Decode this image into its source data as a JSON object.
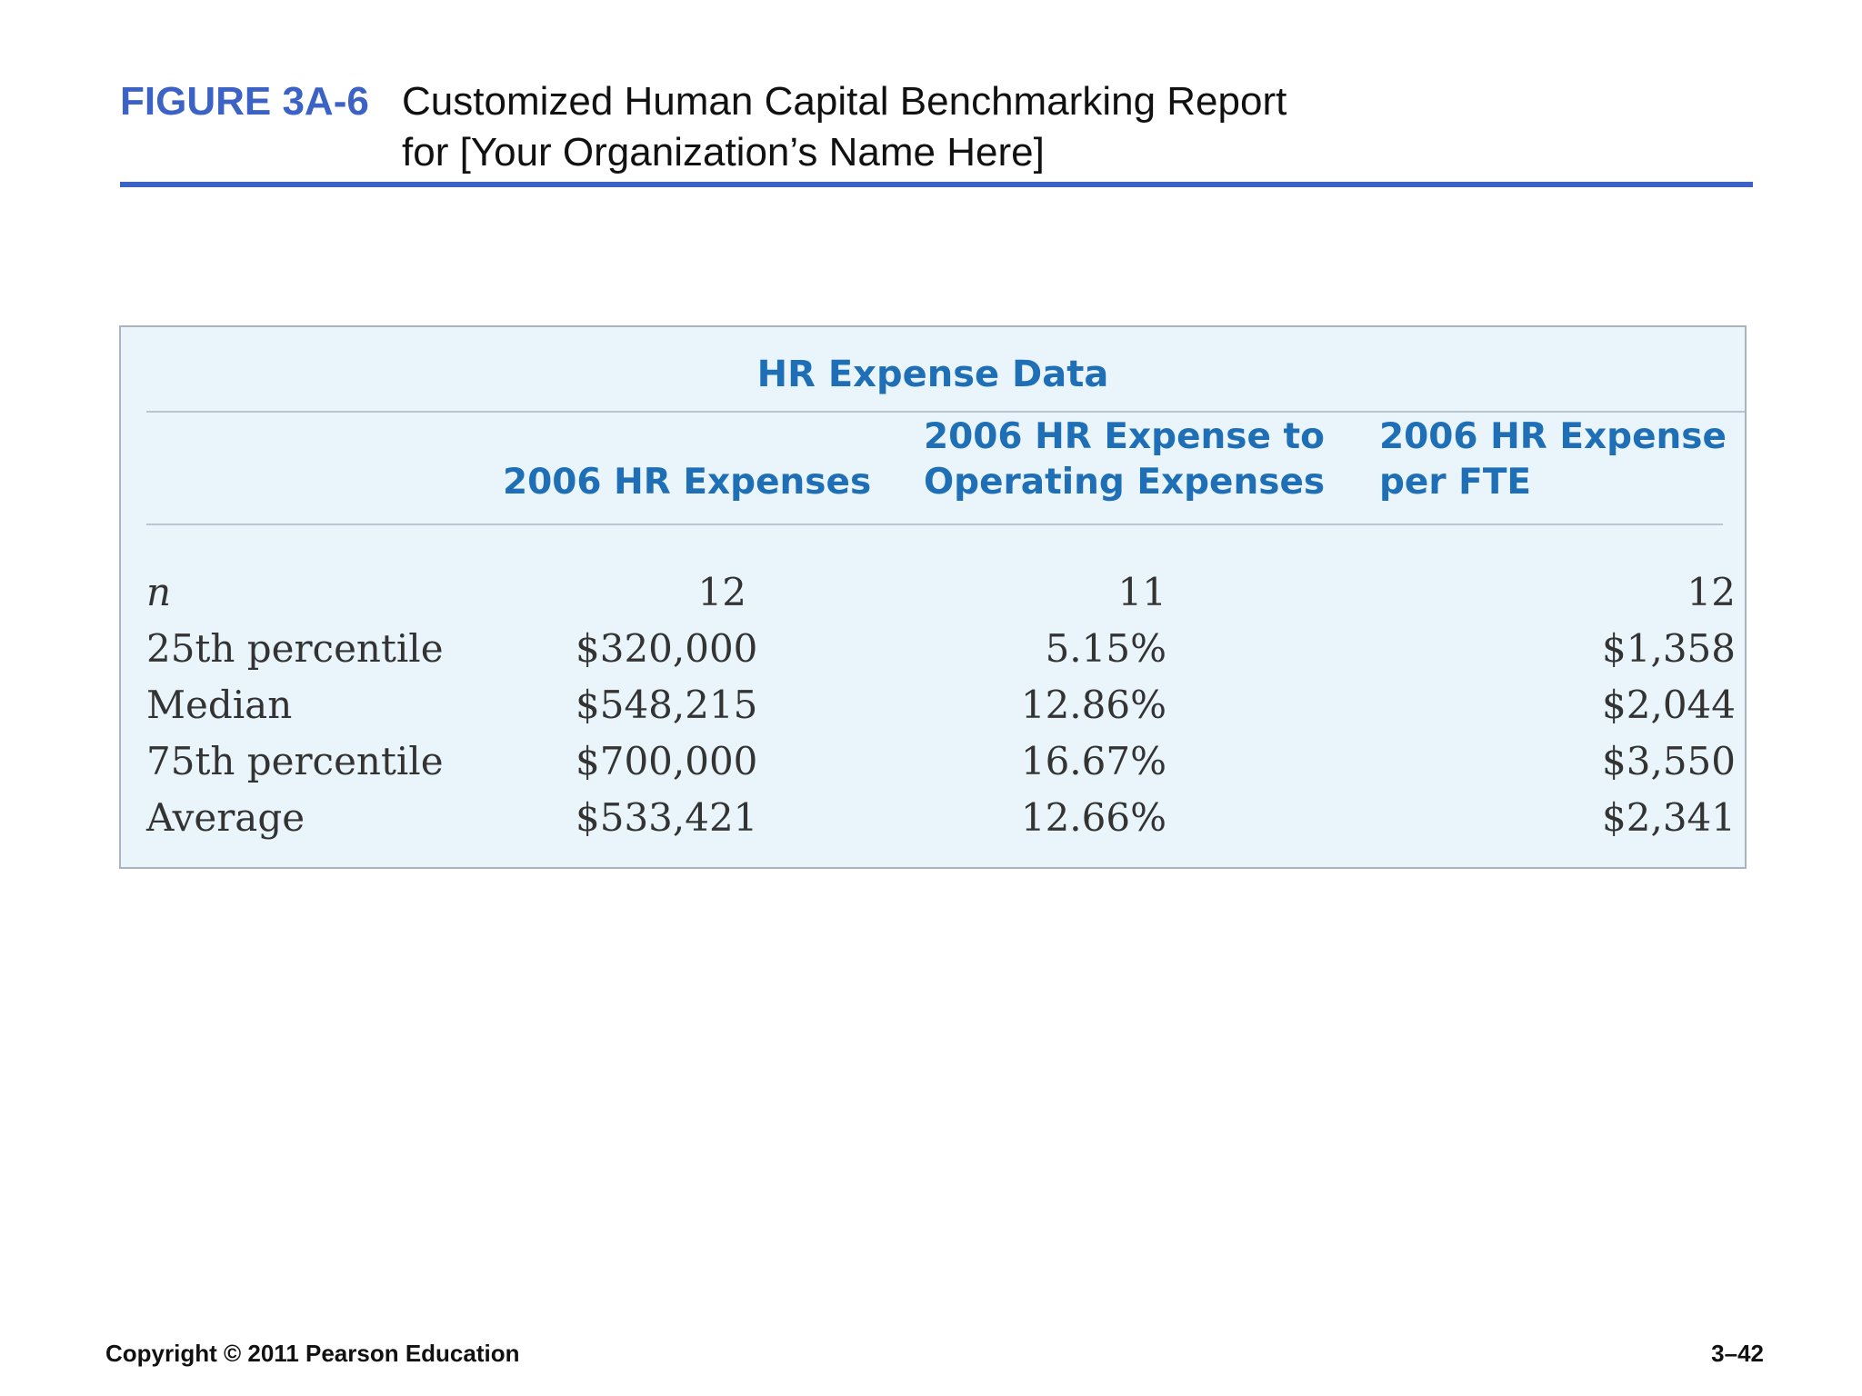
{
  "figure": {
    "label": "FIGURE 3A-6",
    "title_line_1": "Customized Human Capital Benchmarking Report",
    "title_line_2": "for [Your Organization’s Name Here]"
  },
  "table": {
    "title": "HR Expense Data",
    "columns": [
      {
        "lines": [
          "2006 HR Expenses"
        ]
      },
      {
        "lines": [
          "2006 HR Expense to",
          "Operating Expenses"
        ]
      },
      {
        "lines": [
          "2006 HR Expense",
          "per FTE"
        ]
      }
    ],
    "rows": [
      {
        "label": "n",
        "values": [
          "12",
          "11",
          "12"
        ]
      },
      {
        "label": "25th percentile",
        "values": [
          "$320,000",
          "5.15%",
          "$1,358"
        ]
      },
      {
        "label": "Median",
        "values": [
          "$548,215",
          "12.86%",
          "$2,044"
        ]
      },
      {
        "label": "75th percentile",
        "values": [
          "$700,000",
          "16.67%",
          "$3,550"
        ]
      },
      {
        "label": "Average",
        "values": [
          "$533,421",
          "12.66%",
          "$2,341"
        ]
      }
    ]
  },
  "footer": {
    "copyright": "Copyright © 2011 Pearson Education",
    "page_number": "3–42"
  },
  "colors": {
    "figure_blue": "#3b62c4",
    "table_heading_blue": "#1f6fb6",
    "panel_background": "#e9f5fb"
  }
}
